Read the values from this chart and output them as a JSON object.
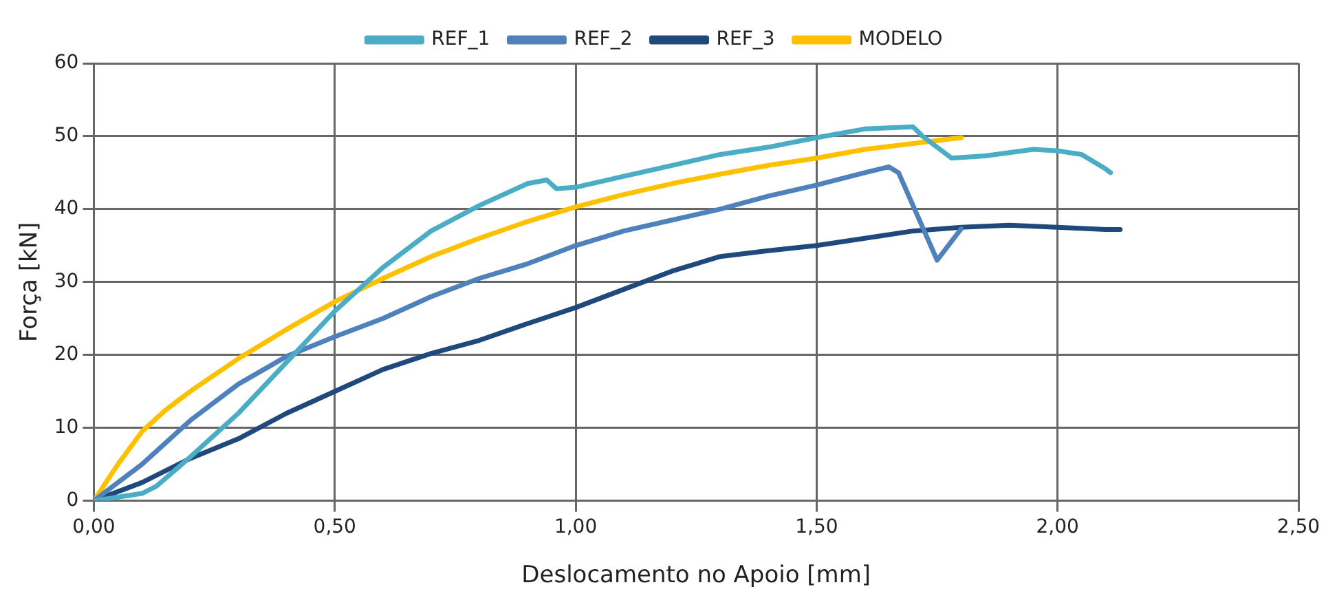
{
  "chart_data": {
    "type": "line",
    "xlabel": "Deslocamento no Apoio [mm]",
    "ylabel": "Força [kN]",
    "xlim": [
      0,
      2.5
    ],
    "xticks": [
      {
        "value": 0,
        "label": "0,00"
      },
      {
        "value": 0.5,
        "label": "0,50"
      },
      {
        "value": 1,
        "label": "1,00"
      },
      {
        "value": 1.5,
        "label": "1,50"
      },
      {
        "value": 2,
        "label": "2,00"
      },
      {
        "value": 2.5,
        "label": "2,50"
      }
    ],
    "ylim": [
      0,
      60
    ],
    "yticks": [
      0,
      10,
      20,
      30,
      40,
      50,
      60
    ],
    "grid": true,
    "legend": "top",
    "marker": "none",
    "line_style": "solid",
    "series": [
      {
        "name": "REF_1",
        "color": "#4bacc6",
        "x": [
          0,
          0.1,
          0.13,
          0.2,
          0.3,
          0.4,
          0.5,
          0.6,
          0.7,
          0.8,
          0.9,
          0.94,
          0.96,
          1.0,
          1.1,
          1.2,
          1.3,
          1.4,
          1.5,
          1.6,
          1.7,
          1.72,
          1.78,
          1.85,
          1.95,
          2.0,
          2.05,
          2.1,
          2.11
        ],
        "values": [
          0,
          1,
          2,
          6,
          12,
          19,
          26,
          32,
          37,
          40.5,
          43.5,
          44,
          42.8,
          43,
          44.5,
          46,
          47.5,
          48.5,
          49.8,
          51,
          51.3,
          50,
          47,
          47.3,
          48.2,
          48,
          47.5,
          45.5,
          45
        ]
      },
      {
        "name": "REF_2",
        "color": "#4f81bd",
        "x": [
          0,
          0.1,
          0.2,
          0.3,
          0.4,
          0.5,
          0.6,
          0.7,
          0.8,
          0.9,
          1.0,
          1.1,
          1.2,
          1.3,
          1.4,
          1.5,
          1.6,
          1.65,
          1.67,
          1.75,
          1.8
        ],
        "values": [
          0,
          5,
          11,
          16,
          19.8,
          22.5,
          25,
          28,
          30.5,
          32.5,
          35,
          37,
          38.5,
          40,
          41.8,
          43.3,
          45,
          45.8,
          45,
          33,
          37.3
        ]
      },
      {
        "name": "REF_3",
        "color": "#1f497d",
        "x": [
          0,
          0.1,
          0.2,
          0.3,
          0.4,
          0.5,
          0.6,
          0.7,
          0.8,
          0.9,
          1.0,
          1.1,
          1.2,
          1.3,
          1.4,
          1.5,
          1.6,
          1.7,
          1.8,
          1.9,
          2.0,
          2.1,
          2.13
        ],
        "values": [
          0,
          2.5,
          5.8,
          8.5,
          12,
          15,
          18,
          20.2,
          22,
          24.3,
          26.5,
          29,
          31.5,
          33.5,
          34.3,
          35,
          36,
          37,
          37.5,
          37.8,
          37.5,
          37.2,
          37.2
        ]
      },
      {
        "name": "MODELO",
        "color": "#ffc000",
        "x": [
          0,
          0.05,
          0.1,
          0.15,
          0.2,
          0.3,
          0.4,
          0.5,
          0.6,
          0.7,
          0.8,
          0.9,
          1.0,
          1.1,
          1.2,
          1.3,
          1.4,
          1.5,
          1.6,
          1.7,
          1.8
        ],
        "values": [
          0,
          5,
          9.5,
          12.5,
          15,
          19.5,
          23.5,
          27.3,
          30.5,
          33.5,
          36,
          38.3,
          40.3,
          42,
          43.5,
          44.8,
          46,
          47,
          48.2,
          49,
          49.8
        ]
      }
    ]
  }
}
